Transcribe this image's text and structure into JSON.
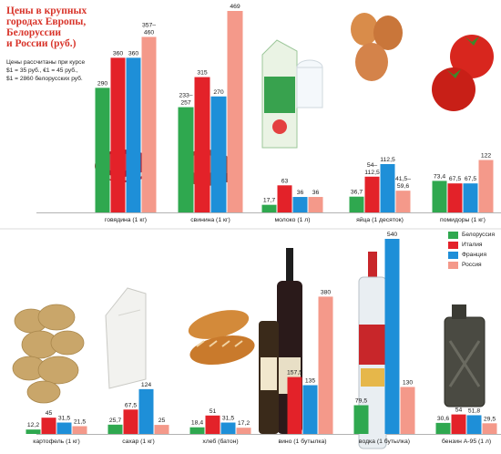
{
  "header": {
    "title_lines": [
      "Цены в крупных",
      "городах Европы,",
      "Белоруссии",
      "и России (руб.)"
    ],
    "note_lines": [
      "Цены рассчитаны при курсе",
      "$1 = 35 руб., €1 = 45 руб.,",
      "$1 = 2860 белорусских руб."
    ]
  },
  "legend": [
    {
      "name": "Белоруссия",
      "color": "#2fa84f"
    },
    {
      "name": "Италия",
      "color": "#e32229"
    },
    {
      "name": "Франция",
      "color": "#1e8fd8"
    },
    {
      "name": "Россия",
      "color": "#f4998a"
    }
  ],
  "chart_data": [
    {
      "type": "bar",
      "series": [
        "Белоруссия",
        "Италия",
        "Франция",
        "Россия"
      ],
      "categories": [
        {
          "label": "говядина (1 кг)",
          "values": [
            290,
            360,
            360,
            408.5
          ],
          "labels": [
            "290",
            "360",
            "360",
            "357–\n460"
          ],
          "icon": "beef-icon"
        },
        {
          "label": "свинина (1 кг)",
          "values": [
            245,
            315,
            270,
            469
          ],
          "labels": [
            "233–\n257",
            "315",
            "270",
            "469"
          ],
          "icon": "ham-icon"
        },
        {
          "label": "молоко (1 л)",
          "values": [
            17.7,
            63,
            36,
            36
          ],
          "labels": [
            "17,7",
            "63",
            "36",
            "36"
          ],
          "icon": "milk-carton-icon"
        },
        {
          "label": "яйца (1 десяток)",
          "values": [
            36.7,
            83.25,
            112.5,
            50.55
          ],
          "labels": [
            "36,7",
            "54–\n112,5",
            "112,5",
            "41,5–\n59,6"
          ],
          "icon": "eggs-icon"
        },
        {
          "label": "помидоры (1 кг)",
          "values": [
            73.4,
            67.5,
            67.5,
            122
          ],
          "labels": [
            "73,4",
            "67,5",
            "67,5",
            "122"
          ],
          "icon": "tomato-icon"
        },
        {
          "label": "картофель (1 кг)",
          "values": [
            12.2,
            45,
            31.5,
            21.5
          ],
          "labels": [
            "12,2",
            "45",
            "31,5",
            "21,5"
          ],
          "icon": "potato-icon"
        },
        {
          "label": "сахар (1 кг)",
          "values": [
            25.7,
            67.5,
            124,
            25
          ],
          "labels": [
            "25,7",
            "67,5",
            "124",
            "25"
          ],
          "icon": "sugar-icon"
        },
        {
          "label": "хлеб (батон)",
          "values": [
            18.4,
            51,
            31.5,
            17.2
          ],
          "labels": [
            "18,4",
            "51",
            "31,5",
            "17,2"
          ],
          "icon": "bread-icon"
        },
        {
          "label": "вино (1 бутылка)",
          "values": [
            null,
            157.5,
            135,
            380
          ],
          "labels": [
            "",
            "157,5",
            "135",
            "380"
          ],
          "icon": "wine-bottle-icon"
        },
        {
          "label": "водка (1 бутылка)",
          "values": [
            79.5,
            null,
            540,
            130
          ],
          "labels": [
            "79,5",
            "",
            "540",
            "130"
          ],
          "icon": "vodka-bottle-icon"
        },
        {
          "label": "бензин А-95 (1 л)",
          "values": [
            30.6,
            54,
            51.8,
            29.5
          ],
          "labels": [
            "30,6",
            "54",
            "51,8",
            "29,5"
          ],
          "icon": "jerrycan-icon"
        }
      ]
    }
  ]
}
